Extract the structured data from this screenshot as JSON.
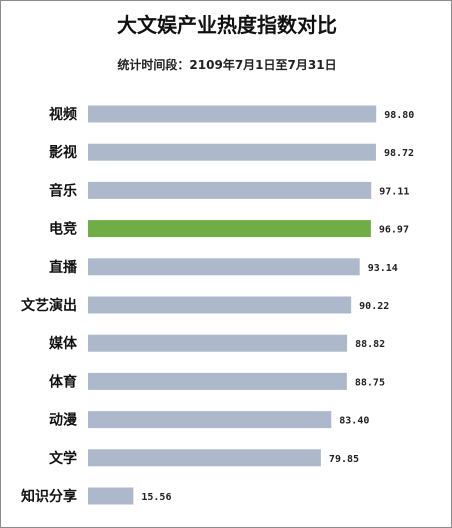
{
  "chart_data": {
    "type": "bar",
    "orientation": "horizontal",
    "title": "大文娱产业热度指数对比",
    "subtitle": "统计时间段：2109年7月1日至7月31日",
    "categories": [
      "视频",
      "影视",
      "音乐",
      "电竞",
      "直播",
      "文艺演出",
      "媒体",
      "体育",
      "动漫",
      "文学",
      "知识分享"
    ],
    "values": [
      98.8,
      98.72,
      97.11,
      96.97,
      93.14,
      90.22,
      88.82,
      88.75,
      83.4,
      79.85,
      15.56
    ],
    "value_labels": [
      "98.80",
      "98.72",
      "97.11",
      "96.97",
      "93.14",
      "90.22",
      "88.82",
      "88.75",
      "83.40",
      "79.85",
      "15.56"
    ],
    "bar_color": "#adb9ca",
    "highlight_category": "电竞",
    "highlight_color": "#70ad47",
    "grid": false,
    "legend": "none"
  }
}
